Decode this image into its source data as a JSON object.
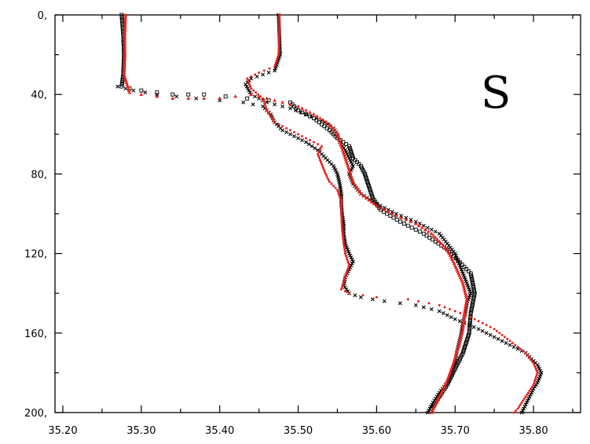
{
  "chart_data": {
    "type": "scatter",
    "title": "",
    "xlabel": "",
    "ylabel": "",
    "annotation": "S",
    "xlim": [
      35.19,
      35.86
    ],
    "ylim": [
      0,
      200
    ],
    "y_inverted": true,
    "grid": false,
    "x_ticks": [
      35.2,
      35.3,
      35.4,
      35.5,
      35.6,
      35.7,
      35.8
    ],
    "x_tick_labels": [
      "35.20",
      "35.30",
      "35.40",
      "35.50",
      "35.60",
      "35.70",
      "35.80"
    ],
    "y_ticks": [
      0,
      40,
      80,
      120,
      160,
      200
    ],
    "y_tick_labels": [
      "0,",
      "40,",
      "80,",
      "120,",
      "160,",
      "200,"
    ],
    "colors": {
      "black": "#000000",
      "red": "#e8241c"
    },
    "series": [
      {
        "color": "black",
        "marker": "x",
        "points": [
          [
            35.475,
            0
          ],
          [
            35.476,
            10
          ],
          [
            35.477,
            20
          ],
          [
            35.47,
            28
          ],
          [
            35.455,
            30
          ],
          [
            35.44,
            32
          ],
          [
            35.433,
            35
          ],
          [
            35.44,
            40
          ],
          [
            35.46,
            44
          ],
          [
            35.49,
            47
          ],
          [
            35.51,
            50
          ],
          [
            35.53,
            53
          ],
          [
            35.545,
            57
          ],
          [
            35.55,
            60
          ],
          [
            35.553,
            64
          ],
          [
            35.56,
            68
          ],
          [
            35.565,
            72
          ],
          [
            35.57,
            76
          ],
          [
            35.565,
            80
          ],
          [
            35.57,
            85
          ],
          [
            35.58,
            90
          ],
          [
            35.6,
            95
          ],
          [
            35.625,
            100
          ],
          [
            35.65,
            104
          ],
          [
            35.68,
            110
          ],
          [
            35.69,
            115
          ],
          [
            35.7,
            120
          ],
          [
            35.705,
            125
          ],
          [
            35.71,
            130
          ],
          [
            35.715,
            135
          ],
          [
            35.72,
            140
          ],
          [
            35.715,
            145
          ],
          [
            35.713,
            150
          ],
          [
            35.71,
            155
          ],
          [
            35.708,
            160
          ],
          [
            35.705,
            165
          ],
          [
            35.702,
            170
          ],
          [
            35.7,
            175
          ],
          [
            35.695,
            180
          ],
          [
            35.69,
            185
          ],
          [
            35.68,
            190
          ],
          [
            35.672,
            195
          ],
          [
            35.665,
            200
          ]
        ]
      },
      {
        "color": "black",
        "marker": "x",
        "points": [
          [
            35.27,
            36
          ],
          [
            35.29,
            38
          ],
          [
            35.32,
            40
          ],
          [
            35.345,
            41
          ],
          [
            35.37,
            42
          ],
          [
            35.4,
            43
          ],
          [
            35.43,
            44
          ],
          [
            35.455,
            46
          ],
          [
            35.465,
            50
          ],
          [
            35.47,
            54
          ],
          [
            35.48,
            58
          ],
          [
            35.495,
            61
          ],
          [
            35.51,
            64
          ],
          [
            35.525,
            68
          ],
          [
            35.535,
            72
          ],
          [
            35.545,
            76
          ],
          [
            35.55,
            80
          ],
          [
            35.553,
            85
          ],
          [
            35.555,
            90
          ],
          [
            35.555,
            95
          ],
          [
            35.556,
            100
          ],
          [
            35.558,
            105
          ],
          [
            35.558,
            110
          ],
          [
            35.56,
            115
          ],
          [
            35.565,
            120
          ],
          [
            35.57,
            124
          ],
          [
            35.565,
            128
          ],
          [
            35.56,
            132
          ],
          [
            35.558,
            136
          ],
          [
            35.565,
            140
          ],
          [
            35.58,
            142
          ],
          [
            35.61,
            144
          ],
          [
            35.65,
            146
          ],
          [
            35.68,
            149
          ],
          [
            35.7,
            153
          ],
          [
            35.73,
            158
          ],
          [
            35.76,
            164
          ],
          [
            35.79,
            170
          ],
          [
            35.805,
            176
          ],
          [
            35.81,
            180
          ],
          [
            35.805,
            185
          ],
          [
            35.8,
            188
          ],
          [
            35.795,
            192
          ],
          [
            35.79,
            196
          ],
          [
            35.785,
            200
          ]
        ]
      },
      {
        "color": "black",
        "marker": "square",
        "points": [
          [
            35.275,
            0
          ],
          [
            35.277,
            10
          ],
          [
            35.278,
            20
          ],
          [
            35.277,
            30
          ],
          [
            35.275,
            36
          ],
          [
            35.285,
            37
          ],
          [
            35.3,
            38
          ],
          [
            35.32,
            39
          ],
          [
            35.34,
            40
          ],
          [
            35.36,
            40
          ],
          [
            35.38,
            40
          ],
          [
            35.49,
            44
          ],
          [
            35.5,
            48
          ],
          [
            35.52,
            52
          ],
          [
            35.54,
            58
          ],
          [
            35.55,
            62
          ],
          [
            35.565,
            66
          ],
          [
            35.57,
            72
          ],
          [
            35.58,
            76
          ],
          [
            35.585,
            80
          ],
          [
            35.59,
            86
          ],
          [
            35.595,
            92
          ],
          [
            35.605,
            98
          ],
          [
            35.63,
            104
          ],
          [
            35.66,
            110
          ],
          [
            35.69,
            118
          ],
          [
            35.72,
            130
          ],
          [
            35.725,
            140
          ],
          [
            35.72,
            150
          ],
          [
            35.718,
            160
          ],
          [
            35.71,
            170
          ],
          [
            35.7,
            178
          ],
          [
            35.69,
            186
          ],
          [
            35.68,
            192
          ],
          [
            35.67,
            198
          ]
        ]
      },
      {
        "color": "red",
        "marker": "triangle",
        "points": [
          [
            35.28,
            0
          ],
          [
            35.279,
            10
          ],
          [
            35.279,
            20
          ],
          [
            35.278,
            30
          ],
          [
            35.285,
            39
          ],
          [
            35.3,
            40
          ],
          [
            35.32,
            41
          ],
          [
            35.34,
            42
          ],
          [
            35.36,
            42
          ],
          [
            35.38,
            42
          ],
          [
            35.4,
            42
          ],
          [
            35.42,
            41
          ],
          [
            35.44,
            40
          ],
          [
            35.46,
            42
          ],
          [
            35.48,
            44
          ],
          [
            35.5,
            46
          ],
          [
            35.52,
            50
          ],
          [
            35.54,
            55
          ],
          [
            35.55,
            60
          ],
          [
            35.555,
            66
          ],
          [
            35.56,
            72
          ],
          [
            35.565,
            78
          ],
          [
            35.57,
            84
          ],
          [
            35.58,
            90
          ],
          [
            35.6,
            96
          ],
          [
            35.625,
            101
          ],
          [
            35.65,
            105
          ],
          [
            35.67,
            110
          ],
          [
            35.69,
            118
          ],
          [
            35.7,
            126
          ],
          [
            35.71,
            135
          ],
          [
            35.715,
            143
          ],
          [
            35.712,
            150
          ],
          [
            35.71,
            158
          ],
          [
            35.705,
            166
          ],
          [
            35.698,
            175
          ],
          [
            35.69,
            184
          ],
          [
            35.68,
            192
          ],
          [
            35.67,
            200
          ]
        ]
      },
      {
        "color": "red",
        "marker": "dot",
        "points": [
          [
            35.476,
            0
          ],
          [
            35.476,
            10
          ],
          [
            35.475,
            20
          ],
          [
            35.47,
            26
          ],
          [
            35.45,
            29
          ],
          [
            35.435,
            32
          ],
          [
            35.44,
            37
          ],
          [
            35.455,
            42
          ],
          [
            35.46,
            48
          ],
          [
            35.47,
            54
          ],
          [
            35.49,
            58
          ],
          [
            35.51,
            62
          ],
          [
            35.53,
            66
          ],
          [
            35.525,
            70
          ],
          [
            35.53,
            75
          ],
          [
            35.535,
            80
          ],
          [
            35.54,
            84
          ],
          [
            35.55,
            88
          ],
          [
            35.555,
            94
          ],
          [
            35.555,
            100
          ],
          [
            35.556,
            108
          ],
          [
            35.558,
            115
          ],
          [
            35.56,
            120
          ],
          [
            35.565,
            126
          ],
          [
            35.56,
            132
          ],
          [
            35.555,
            138
          ],
          [
            35.565,
            140
          ],
          [
            35.6,
            142
          ],
          [
            35.64,
            143
          ],
          [
            35.68,
            146
          ],
          [
            35.72,
            152
          ],
          [
            35.75,
            158
          ],
          [
            35.77,
            164
          ],
          [
            35.79,
            170
          ],
          [
            35.8,
            175
          ],
          [
            35.805,
            180
          ],
          [
            35.8,
            186
          ],
          [
            35.79,
            192
          ],
          [
            35.78,
            198
          ],
          [
            35.775,
            200
          ]
        ]
      }
    ]
  }
}
